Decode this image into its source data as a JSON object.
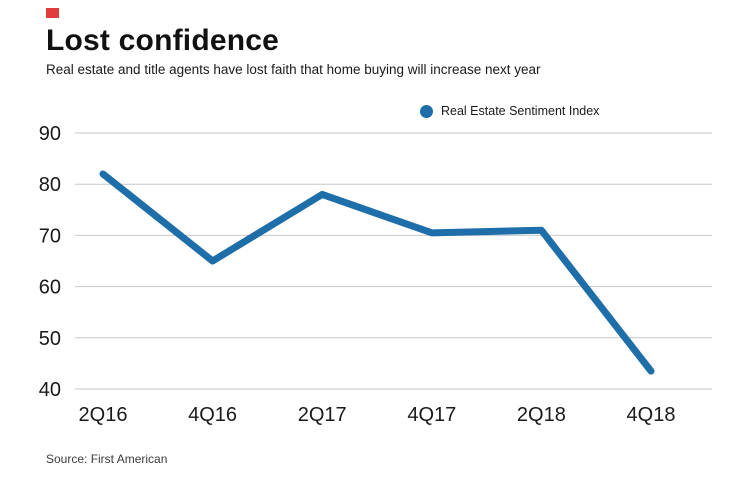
{
  "chart_data": {
    "type": "line",
    "title": "Lost confidence",
    "subtitle": "Real estate and title agents have lost faith that home buying will increase next year",
    "legend_label": "Real Estate Sentiment Index",
    "source": "Source: First American",
    "categories": [
      "2Q16",
      "4Q16",
      "2Q17",
      "4Q17",
      "2Q18",
      "4Q18"
    ],
    "series": [
      {
        "name": "Real Estate Sentiment Index",
        "values": [
          82,
          65,
          78,
          70.5,
          71,
          43.5
        ]
      }
    ],
    "ylim": [
      40,
      90
    ],
    "yticks": [
      40,
      50,
      60,
      70,
      80,
      90
    ],
    "grid": true,
    "legend_position": "top-center",
    "line_color": "#1e6fa9",
    "grid_color": "#c9c9c9",
    "brand_mark_color": "#e23b3b"
  }
}
